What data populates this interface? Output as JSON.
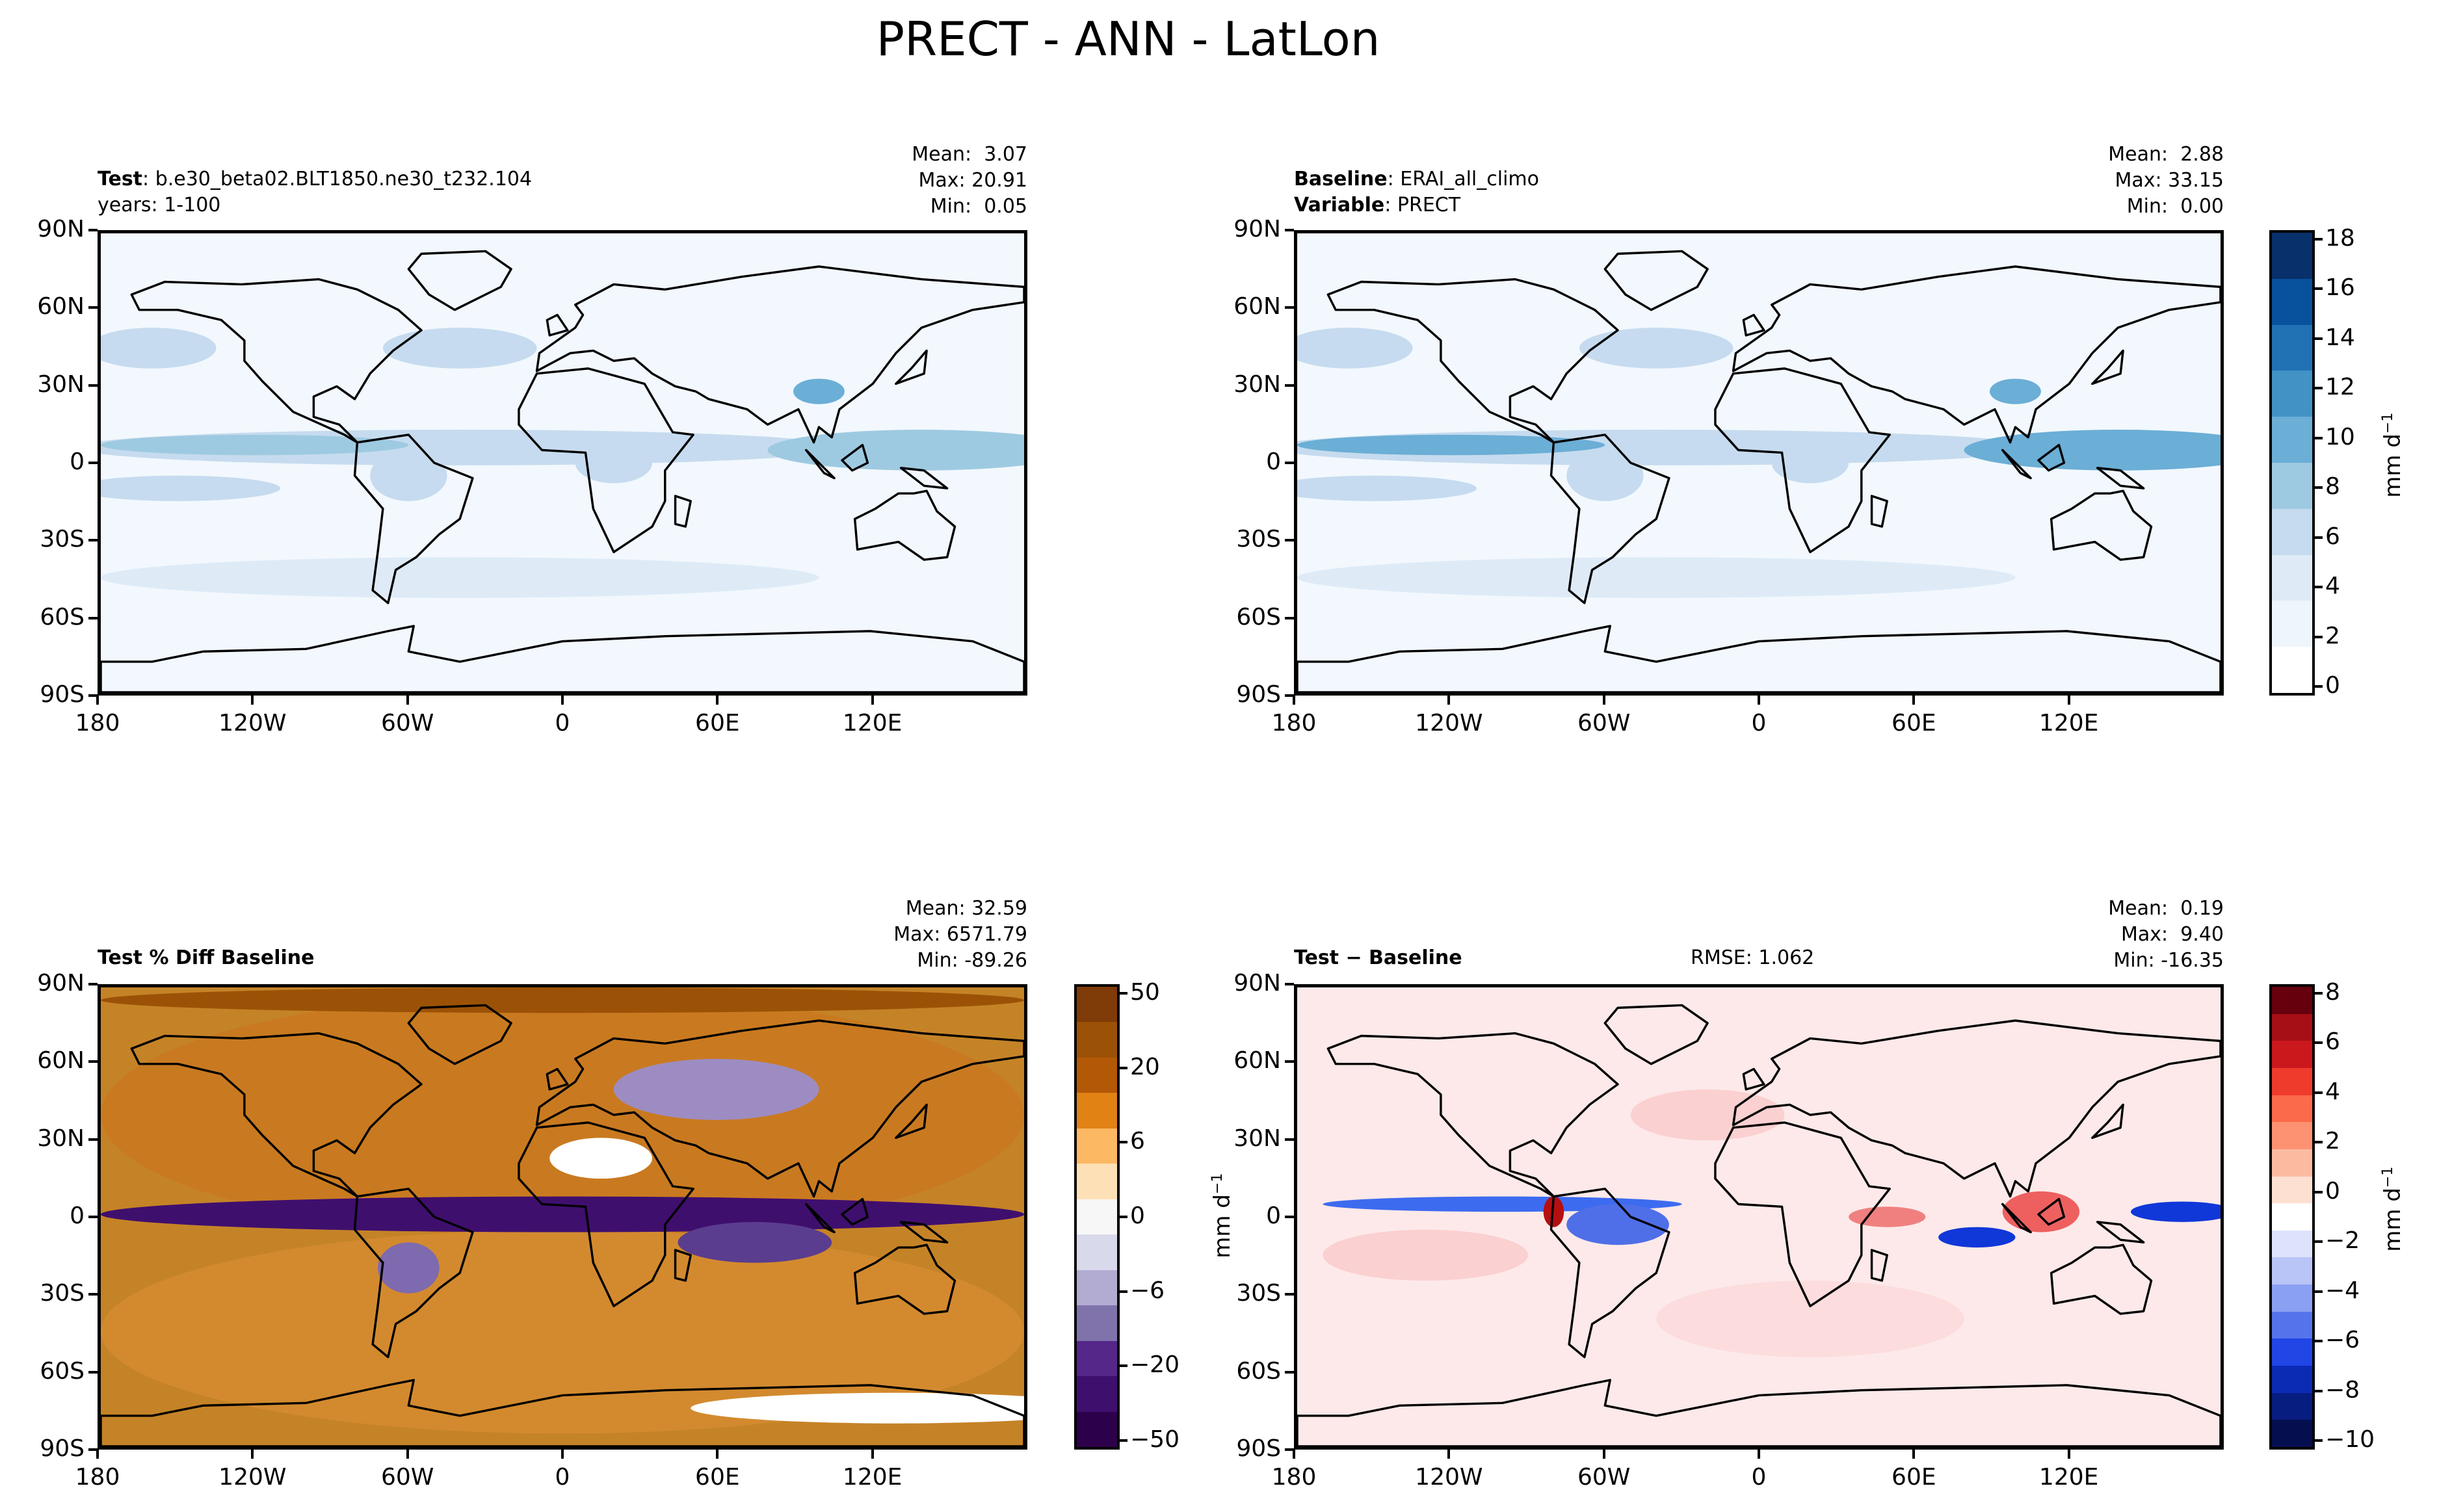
{
  "figure_title": "PRECT - ANN - LatLon",
  "lat_ticks": [
    "90N",
    "60N",
    "30N",
    "0",
    "30S",
    "60S",
    "90S"
  ],
  "lon_ticks": [
    "180",
    "120W",
    "60W",
    "0",
    "60E",
    "120E"
  ],
  "colors": {
    "precip_light": "#f2f8fd",
    "precip_dark": "#08306b",
    "diff_brown": "#9c5206",
    "diff_purple": "#3f0f6e",
    "rmse_red": "#b50f12",
    "rmse_blue": "#1037d8",
    "coast": "#000000"
  },
  "panels": {
    "test": {
      "label_bold": "Test",
      "label_sep": ":",
      "case_name": "b.e30_beta02.BLT1850.ne30_t232.104",
      "years": "years: 1-100",
      "mean": "Mean:  3.07",
      "max": "Max: 20.91",
      "min": "Min:  0.05"
    },
    "baseline": {
      "label_bold": "Baseline",
      "label_sep": ":",
      "name": "ERAI_all_climo",
      "var_bold": "Variable",
      "var_sep": ":",
      "variable": "PRECT",
      "mean": "Mean:  2.88",
      "max": "Max: 33.15",
      "min": "Min:  0.00"
    },
    "pct_diff": {
      "title": "Test % Diff Baseline",
      "mean": "Mean: 32.59",
      "max": "Max: 6571.79",
      "min": "Min: -89.26"
    },
    "diff": {
      "title": "Test − Baseline",
      "rmse": "RMSE: 1.062",
      "mean": "Mean:  0.19",
      "max": "Max:  9.40",
      "min": "Min: -16.35"
    }
  },
  "colorbars": {
    "precip": {
      "unit_main": "mm d",
      "unit_sup": "−1",
      "ticks": [
        "18",
        "16",
        "14",
        "12",
        "10",
        "8",
        "6",
        "4",
        "2",
        "0"
      ]
    },
    "pct": {
      "ticks": [
        "50",
        "20",
        "6",
        "0",
        "−6",
        "−20",
        "−50"
      ]
    },
    "diff": {
      "unit_main": "mm d",
      "unit_sup": "−1",
      "ticks": [
        "8",
        "6",
        "4",
        "2",
        "0",
        "−2",
        "−4",
        "−6",
        "−8",
        "−10"
      ]
    }
  },
  "chart_data": [
    {
      "type": "heatmap",
      "title": "Test: b.e30_beta02.BLT1850.ne30_t232.104",
      "subtitle": "years: 1-100",
      "variable": "PRECT",
      "units": "mm d-1",
      "x_range": [
        -180,
        180
      ],
      "y_range": [
        -90,
        90
      ],
      "x_ticks": [
        "180",
        "120W",
        "60W",
        "0",
        "60E",
        "120E"
      ],
      "y_ticks": [
        "90N",
        "60N",
        "30N",
        "0",
        "30S",
        "60S",
        "90S"
      ],
      "stats": {
        "mean": 3.07,
        "max": 20.91,
        "min": 0.05
      },
      "color_levels": [
        0,
        2,
        4,
        6,
        8,
        10,
        12,
        14,
        16,
        18
      ]
    },
    {
      "type": "heatmap",
      "title": "Baseline: ERAI_all_climo",
      "subtitle": "Variable: PRECT",
      "units": "mm d-1",
      "x_range": [
        -180,
        180
      ],
      "y_range": [
        -90,
        90
      ],
      "stats": {
        "mean": 2.88,
        "max": 33.15,
        "min": 0.0
      },
      "color_levels": [
        0,
        2,
        4,
        6,
        8,
        10,
        12,
        14,
        16,
        18
      ]
    },
    {
      "type": "heatmap",
      "title": "Test % Diff Baseline",
      "units": "%",
      "x_range": [
        -180,
        180
      ],
      "y_range": [
        -90,
        90
      ],
      "stats": {
        "mean": 32.59,
        "max": 6571.79,
        "min": -89.26
      },
      "color_levels": [
        -50,
        -20,
        -6,
        0,
        6,
        20,
        50
      ]
    },
    {
      "type": "heatmap",
      "title": "Test − Baseline",
      "units": "mm d-1",
      "x_range": [
        -180,
        180
      ],
      "y_range": [
        -90,
        90
      ],
      "stats": {
        "mean": 0.19,
        "max": 9.4,
        "min": -16.35,
        "rmse": 1.062
      },
      "color_levels": [
        -10,
        -8,
        -6,
        -4,
        -2,
        0,
        2,
        4,
        6,
        8
      ]
    }
  ]
}
